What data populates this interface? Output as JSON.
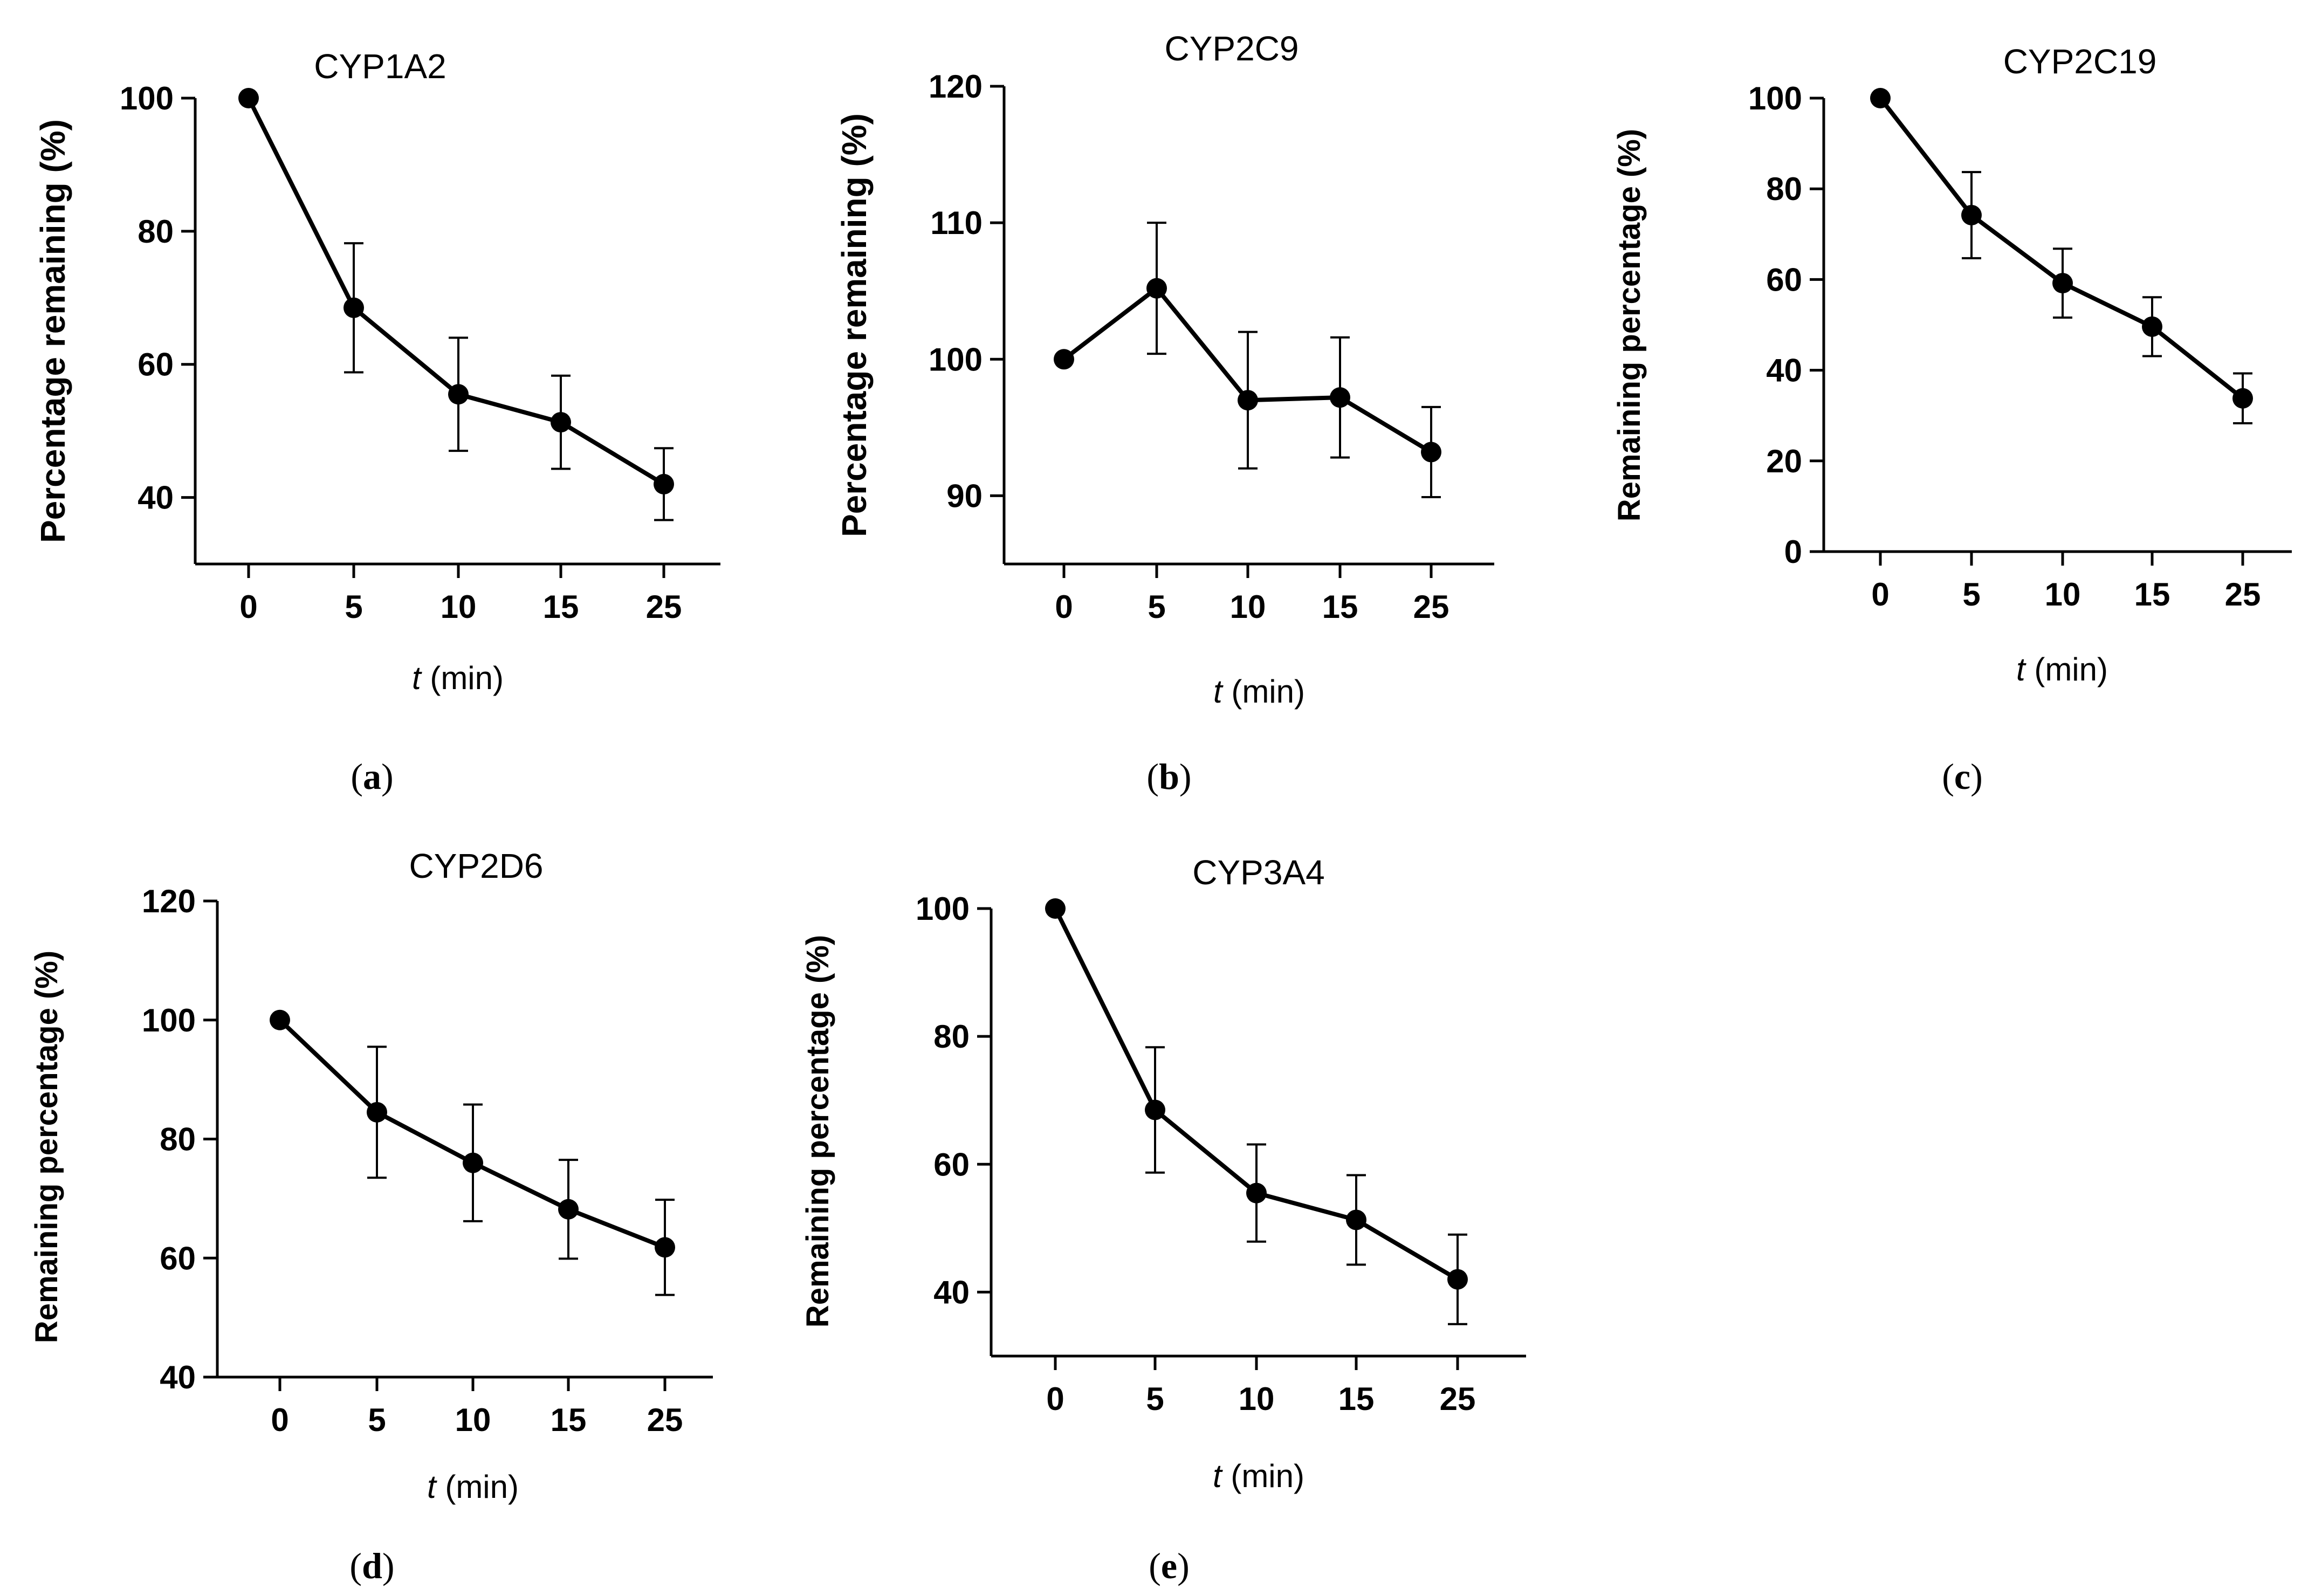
{
  "chart_data": [
    {
      "type": "line",
      "title": "CYP1A2",
      "panel_label": "a",
      "xlabel_italic": "t",
      "xlabel_rest": " (min)",
      "ylabel": "Percentage remaining (%)",
      "categories": [
        "0",
        "5",
        "10",
        "15",
        "25"
      ],
      "values": [
        100,
        68.5,
        55.5,
        51.3,
        42
      ],
      "errors": [
        0,
        9.7,
        8.5,
        7,
        5.4
      ],
      "ylim": [
        30,
        100
      ],
      "yticks": [
        40,
        60,
        80,
        100
      ]
    },
    {
      "type": "line",
      "title": "CYP2C9",
      "panel_label": "b",
      "xlabel_italic": "t",
      "xlabel_rest": " (min)",
      "ylabel": "Percentage remaining (%)",
      "categories": [
        "0",
        "5",
        "10",
        "15",
        "25"
      ],
      "values": [
        100,
        105.2,
        97,
        97.2,
        93.2
      ],
      "errors": [
        0,
        4.8,
        5,
        4.4,
        3.3
      ],
      "ylim": [
        85,
        120
      ],
      "yticks": [
        90,
        100,
        110,
        120
      ]
    },
    {
      "type": "line",
      "title": "CYP2C19",
      "panel_label": "c",
      "xlabel_italic": "t",
      "xlabel_rest": " (min)",
      "ylabel": "Remaining percentage (%)",
      "categories": [
        "0",
        "5",
        "10",
        "15",
        "25"
      ],
      "values": [
        100,
        74.2,
        59.2,
        49.6,
        33.8
      ],
      "errors": [
        0,
        9.5,
        7.6,
        6.5,
        5.5
      ],
      "ylim": [
        0,
        100
      ],
      "yticks": [
        0,
        20,
        40,
        60,
        80,
        100
      ]
    },
    {
      "type": "line",
      "title": "CYP2D6",
      "panel_label": "d",
      "xlabel_italic": "t",
      "xlabel_rest": " (min)",
      "ylabel": "Remaining percentage (%)",
      "categories": [
        "0",
        "5",
        "10",
        "15",
        "25"
      ],
      "values": [
        100,
        84.5,
        76,
        68.2,
        61.8
      ],
      "errors": [
        0,
        11,
        9.8,
        8.3,
        8
      ],
      "ylim": [
        40,
        120
      ],
      "yticks": [
        40,
        60,
        80,
        100,
        120
      ]
    },
    {
      "type": "line",
      "title": "CYP3A4",
      "panel_label": "e",
      "xlabel_italic": "t",
      "xlabel_rest": " (min)",
      "ylabel": "Remaining percentage (%)",
      "categories": [
        "0",
        "5",
        "10",
        "15",
        "25"
      ],
      "values": [
        100,
        68.5,
        55.5,
        51.3,
        42
      ],
      "errors": [
        0,
        9.8,
        7.6,
        7,
        7
      ],
      "ylim": [
        30,
        100
      ],
      "yticks": [
        40,
        60,
        80,
        100
      ]
    }
  ]
}
